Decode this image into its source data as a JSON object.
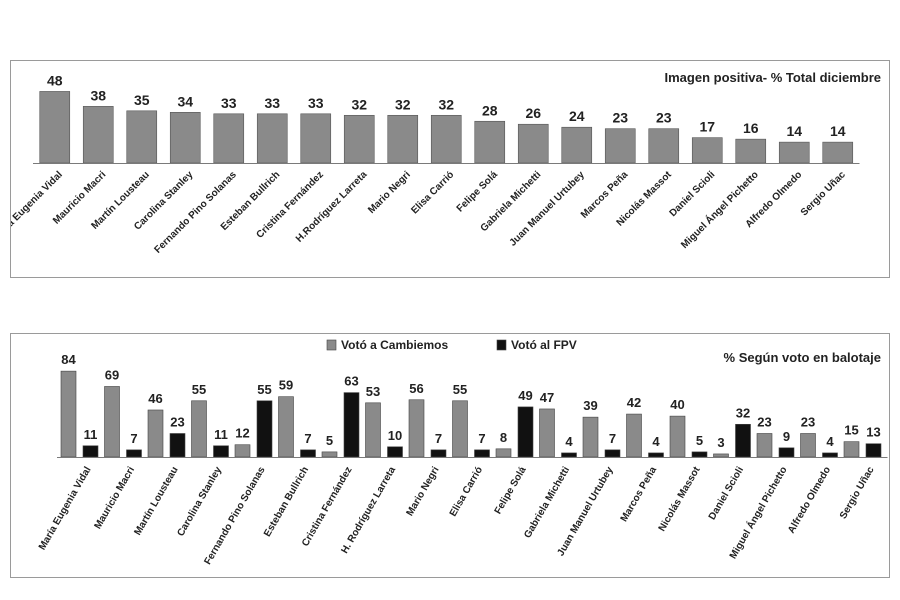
{
  "colors": {
    "cambiemos": "#8a8a8a",
    "fpv": "#111111",
    "axis": "#7a7a7a",
    "text": "#222222"
  },
  "chart_data": [
    {
      "type": "bar",
      "title": "Imagen positiva- % Total diciembre",
      "categories": [
        "María Eugenia Vidal",
        "Mauricio Macri",
        "Martín Lousteau",
        "Carolina Stanley",
        "Fernando Pino Solanas",
        "Esteban Bullrich",
        "Cristina Fernández",
        "H.Rodríguez Larreta",
        "Mario Negri",
        "Elisa Carrió",
        "Felipe Solá",
        "Gabriela Michetti",
        "Juan Manuel Urtubey",
        "Marcos Peña",
        "Nicolás Massot",
        "Daniel Scioli",
        "Miguel Ángel Pichetto",
        "Alfredo Olmedo",
        "Sergio Uñac"
      ],
      "values": [
        48,
        38,
        35,
        34,
        33,
        33,
        33,
        32,
        32,
        32,
        28,
        26,
        24,
        23,
        23,
        17,
        16,
        14,
        14
      ],
      "ylim": [
        0,
        55
      ]
    },
    {
      "type": "bar",
      "title": "% Según voto en balotaje",
      "categories": [
        "María Eugenia Vidal",
        "Mauricio Macri",
        "Martín Lousteau",
        "Carolina Stanley",
        "Fernando Pino Solanas",
        "Esteban Bullrich",
        "Cristina Fernández",
        "H. Rodríguez Larreta",
        "Mario Negri",
        "Elisa Carrió",
        "Felipe Solá",
        "Gabriela Michetti",
        "Juan Manuel Urtubey",
        "Marcos Peña",
        "Nicolás Massot",
        "Daniel Scioli",
        "Miguel Ángel Pichetto",
        "Alfredo Olmedo",
        "Sergio Uñac"
      ],
      "series": [
        {
          "name": "Votó a Cambiemos",
          "values": [
            84,
            69,
            46,
            55,
            12,
            59,
            5,
            53,
            56,
            55,
            8,
            47,
            39,
            42,
            40,
            3,
            23,
            23,
            15
          ]
        },
        {
          "name": "Votó al FPV",
          "values": [
            11,
            7,
            23,
            11,
            55,
            7,
            63,
            10,
            7,
            7,
            49,
            4,
            7,
            4,
            5,
            32,
            9,
            4,
            13
          ]
        }
      ],
      "legend": "top-center",
      "ylim": [
        0,
        90
      ]
    }
  ]
}
